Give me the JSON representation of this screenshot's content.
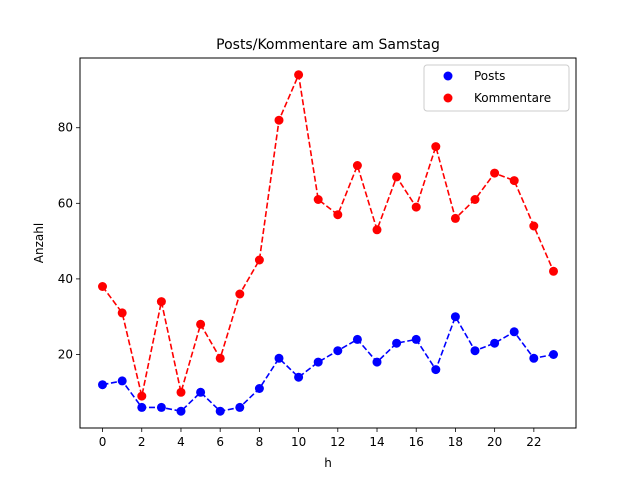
{
  "chart_data": {
    "type": "line",
    "title": "Posts/Kommentare am Samstag",
    "xlabel": "h",
    "ylabel": "Anzahl",
    "x": [
      0,
      1,
      2,
      3,
      4,
      5,
      6,
      7,
      8,
      9,
      10,
      11,
      12,
      13,
      14,
      15,
      16,
      17,
      18,
      19,
      20,
      21,
      22,
      23
    ],
    "x_ticks": [
      0,
      2,
      4,
      6,
      8,
      10,
      12,
      14,
      16,
      18,
      20,
      22
    ],
    "y_ticks": [
      20,
      40,
      60,
      80
    ],
    "xlim": [
      -1.15,
      24.15
    ],
    "ylim": [
      0.55,
      98.45
    ],
    "grid": false,
    "legend_position": "upper right",
    "series": [
      {
        "name": "Posts",
        "color": "#0000ff",
        "marker": "circle",
        "linestyle": "dashed",
        "values": [
          12,
          13,
          6,
          6,
          5,
          10,
          5,
          6,
          11,
          19,
          14,
          18,
          21,
          24,
          18,
          23,
          24,
          16,
          30,
          21,
          23,
          26,
          19,
          20
        ]
      },
      {
        "name": "Kommentare",
        "color": "#ff0000",
        "marker": "circle",
        "linestyle": "dashed",
        "values": [
          38,
          31,
          9,
          34,
          10,
          28,
          19,
          36,
          45,
          82,
          94,
          61,
          57,
          70,
          53,
          67,
          59,
          75,
          56,
          61,
          68,
          66,
          54,
          42
        ]
      }
    ]
  }
}
